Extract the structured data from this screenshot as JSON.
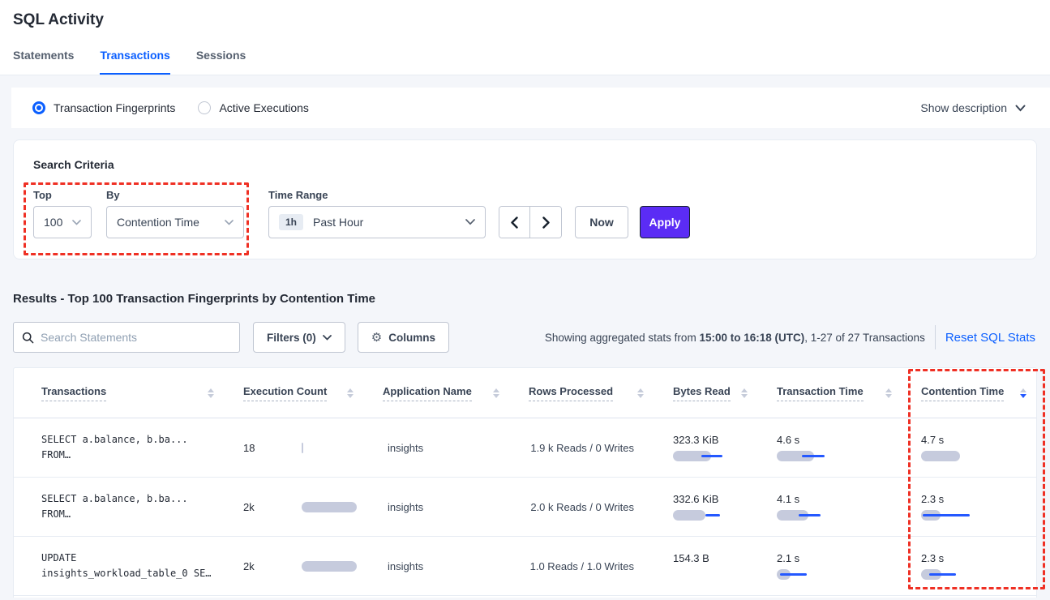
{
  "page": {
    "title": "SQL Activity"
  },
  "tabs": [
    {
      "label": "Statements"
    },
    {
      "label": "Transactions"
    },
    {
      "label": "Sessions"
    }
  ],
  "view_toggle": {
    "options": [
      {
        "label": "Transaction Fingerprints",
        "selected": true
      },
      {
        "label": "Active Executions",
        "selected": false
      }
    ],
    "show_description": "Show description"
  },
  "criteria": {
    "title": "Search Criteria",
    "top": {
      "label": "Top",
      "value": "100"
    },
    "by": {
      "label": "By",
      "value": "Contention Time"
    },
    "time_range": {
      "label": "Time Range",
      "badge": "1h",
      "value": "Past Hour"
    },
    "now_label": "Now",
    "apply_label": "Apply"
  },
  "results": {
    "heading": "Results - Top 100 Transaction Fingerprints by Contention Time",
    "search_placeholder": "Search Statements",
    "filters_label": "Filters (0)",
    "columns_label": "Columns",
    "stats_prefix": "Showing aggregated stats from ",
    "stats_range": "15:00 to 16:18 (UTC)",
    "stats_suffix": ", 1-27 of 27 Transactions",
    "reset_label": "Reset SQL Stats"
  },
  "icons": {
    "gear": "⚙"
  },
  "colors": {
    "accent_blue": "#0b5fff",
    "bar_blue": "#2458ff",
    "bar_gray": "#c6cbdd",
    "apply_purple": "#5b2cf5",
    "annotation_red": "#ef3024"
  },
  "table": {
    "columns": [
      {
        "label": "Transactions",
        "sort_class": "sort-icon"
      },
      {
        "label": "Execution Count",
        "sort_class": "sort-icon"
      },
      {
        "label": "Application Name",
        "sort_class": "sort-icon"
      },
      {
        "label": "Rows Processed",
        "sort_class": "sort-icon"
      },
      {
        "label": "Bytes Read",
        "sort_class": "sort-icon"
      },
      {
        "label": "Transaction Time",
        "sort_class": "sort-icon"
      },
      {
        "label": "Contention Time",
        "sort_class": "sort-icon desc"
      }
    ],
    "rows": [
      {
        "query_line1": "SELECT a.balance, b.ba...",
        "query_line2": "FROM…",
        "execution_count": "18",
        "execution_bar": {
          "gray": 2
        },
        "application_name": "insights",
        "rows_processed": "1.9 k Reads / 0 Writes",
        "bytes_read": "323.3 KiB",
        "bytes_read_bar": {
          "gray": 47,
          "blue_start": 35,
          "blue_len": 26
        },
        "transaction_time": "4.6 s",
        "transaction_time_bar": {
          "gray": 46,
          "blue_start": 31,
          "blue_len": 28
        },
        "contention_time": "4.7 s",
        "contention_time_bar": {
          "gray": 48
        }
      },
      {
        "query_line1": "SELECT a.balance, b.ba...",
        "query_line2": "FROM…",
        "execution_count": "2k",
        "execution_bar": {
          "gray": 68
        },
        "application_name": "insights",
        "rows_processed": "2.0 k Reads / 0 Writes",
        "bytes_read": "332.6 KiB",
        "bytes_read_bar": {
          "gray": 40,
          "blue_start": 40,
          "blue_len": 18
        },
        "transaction_time": "4.1 s",
        "transaction_time_bar": {
          "gray": 39,
          "blue_start": 27,
          "blue_len": 27
        },
        "contention_time": "2.3 s",
        "contention_time_bar": {
          "gray": 24,
          "blue_start": 2,
          "blue_len": 58
        }
      },
      {
        "query_line1": "UPDATE",
        "query_line2": "insights_workload_table_0 SE…",
        "execution_count": "2k",
        "execution_bar": {
          "gray": 68
        },
        "application_name": "insights",
        "rows_processed": "1.0 Reads / 1.0 Writes",
        "bytes_read": "154.3 B",
        "bytes_read_bar": null,
        "transaction_time": "2.1 s",
        "transaction_time_bar": {
          "gray": 17,
          "blue_start": 4,
          "blue_len": 33
        },
        "contention_time": "2.3 s",
        "contention_time_bar": {
          "gray": 25,
          "blue_start": 10,
          "blue_len": 33
        }
      }
    ]
  }
}
